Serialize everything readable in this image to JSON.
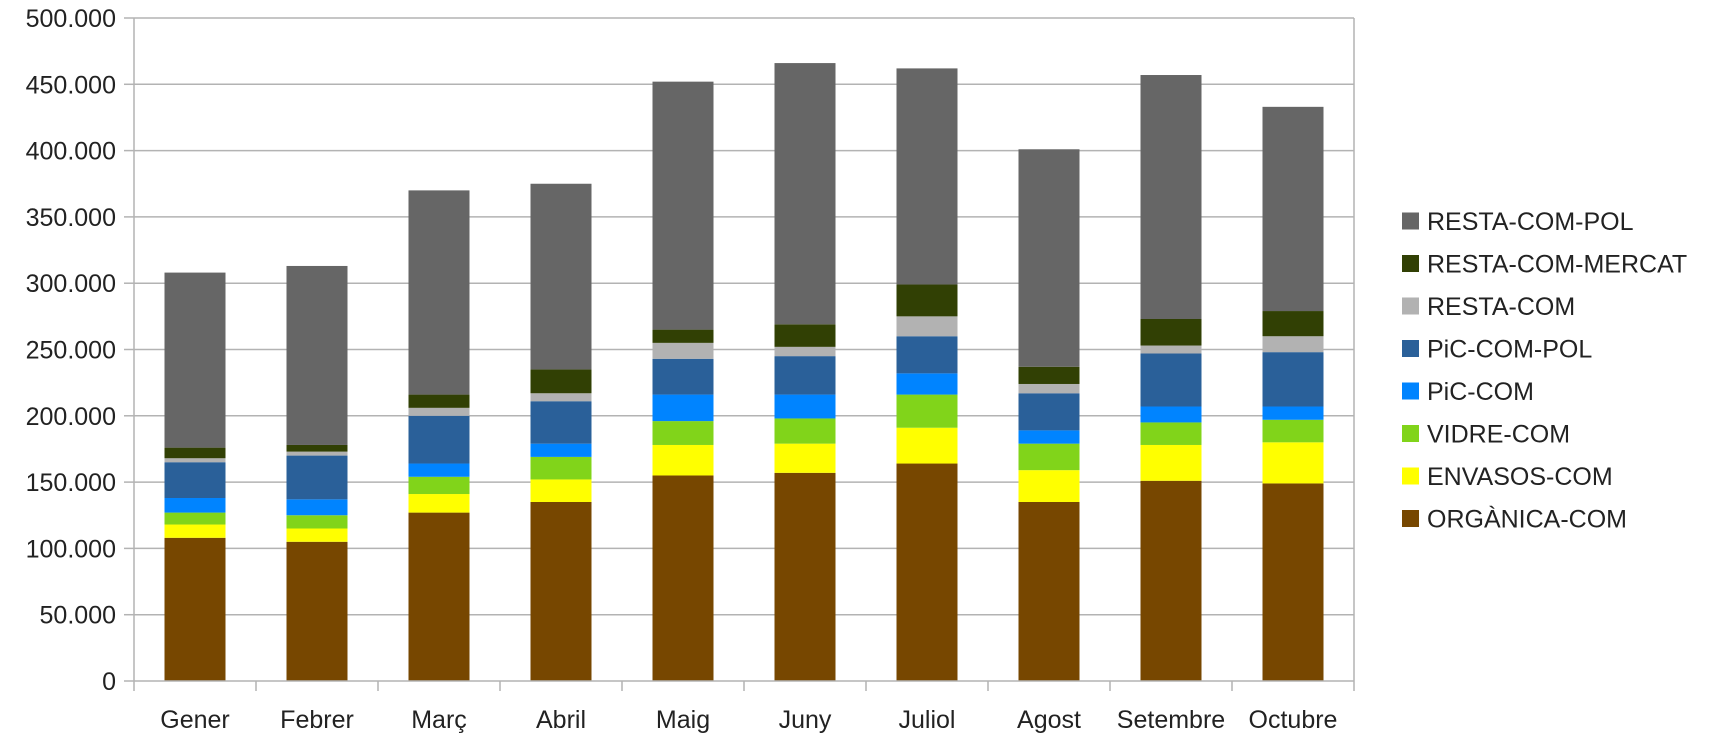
{
  "chart_data": {
    "type": "bar",
    "stacked": true,
    "categories": [
      "Gener",
      "Febrer",
      "Març",
      "Abril",
      "Maig",
      "Juny",
      "Juliol",
      "Agost",
      "Setembre",
      "Octubre"
    ],
    "ylim": [
      0,
      500000
    ],
    "yticks": [
      0,
      50000,
      100000,
      150000,
      200000,
      250000,
      300000,
      350000,
      400000,
      450000,
      500000
    ],
    "ytick_labels": [
      "0",
      "50.000",
      "100.000",
      "150.000",
      "200.000",
      "250.000",
      "300.000",
      "350.000",
      "400.000",
      "450.000",
      "500.000"
    ],
    "grid": true,
    "legend_position": "right",
    "series": [
      {
        "name": "ORGÀNICA-COM",
        "color": "#774700",
        "values": [
          108000,
          105000,
          127000,
          135000,
          155000,
          157000,
          164000,
          135000,
          151000,
          149000
        ]
      },
      {
        "name": "ENVASOS-COM",
        "color": "#ffff00",
        "values": [
          10000,
          10000,
          14000,
          17000,
          23000,
          22000,
          27000,
          24000,
          27000,
          31000
        ]
      },
      {
        "name": "VIDRE-COM",
        "color": "#81d41a",
        "values": [
          9000,
          10000,
          13000,
          17000,
          18000,
          19000,
          25000,
          20000,
          17000,
          17000
        ]
      },
      {
        "name": "PiC-COM",
        "color": "#0084ff",
        "values": [
          11000,
          12000,
          10000,
          10000,
          20000,
          18000,
          16000,
          10000,
          12000,
          10000
        ]
      },
      {
        "name": "PiC-COM-POL",
        "color": "#2a6099",
        "values": [
          27000,
          33000,
          36000,
          32000,
          27000,
          29000,
          28000,
          28000,
          40000,
          41000
        ]
      },
      {
        "name": "RESTA-COM",
        "color": "#b2b2b2",
        "values": [
          3000,
          3000,
          6000,
          6000,
          12000,
          7000,
          15000,
          7000,
          6000,
          12000
        ]
      },
      {
        "name": "RESTA-COM-MERCAT",
        "color": "#314004",
        "values": [
          8000,
          5000,
          10000,
          18000,
          10000,
          17000,
          24000,
          13000,
          20000,
          19000
        ]
      },
      {
        "name": "RESTA-COM-POL",
        "color": "#666666",
        "values": [
          132000,
          135000,
          154000,
          140000,
          187000,
          197000,
          163000,
          164000,
          184000,
          154000
        ]
      }
    ]
  }
}
